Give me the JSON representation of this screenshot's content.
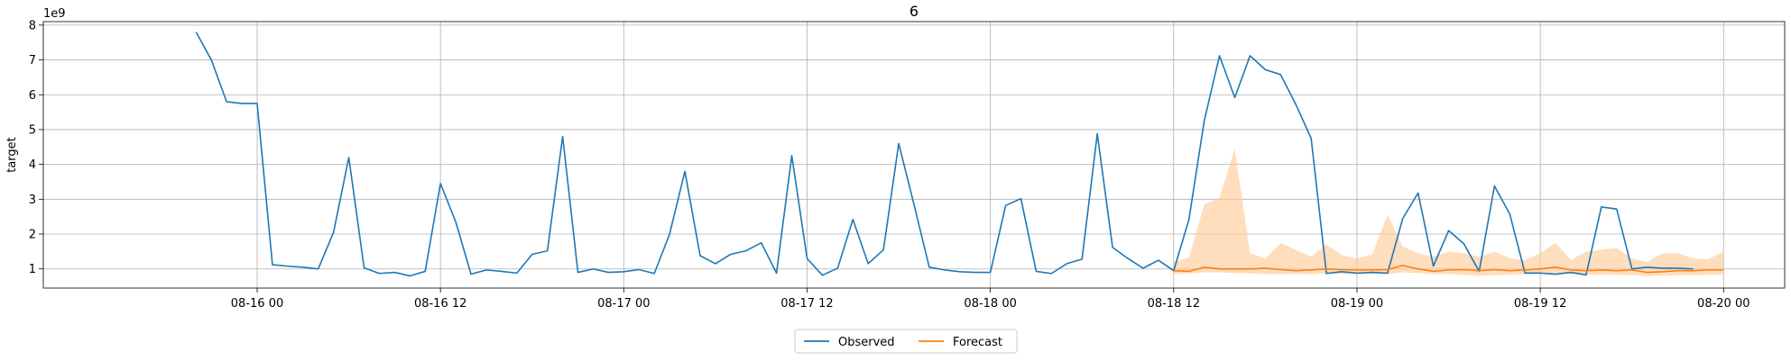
{
  "chart_data": {
    "type": "line",
    "title": "6",
    "xlabel": "",
    "ylabel": "target",
    "y_multiplier_label": "1e9",
    "y_scale": 1000000000,
    "xlim_hours": [
      -14,
      100
    ],
    "ylim": [
      0.45,
      8.1
    ],
    "grid": true,
    "legend_position": "bottom-center",
    "x_ticks": [
      {
        "h": 0,
        "label": "08-16 00"
      },
      {
        "h": 12,
        "label": "08-16 12"
      },
      {
        "h": 24,
        "label": "08-17 00"
      },
      {
        "h": 36,
        "label": "08-17 12"
      },
      {
        "h": 48,
        "label": "08-18 00"
      },
      {
        "h": 60,
        "label": "08-18 12"
      },
      {
        "h": 72,
        "label": "08-19 00"
      },
      {
        "h": 84,
        "label": "08-19 12"
      },
      {
        "h": 96,
        "label": "08-20 00"
      }
    ],
    "y_ticks": [
      1,
      2,
      3,
      4,
      5,
      6,
      7,
      8
    ],
    "series": [
      {
        "name": "Observed",
        "color": "#1f77b4",
        "x_start_hour": -4,
        "step_hours": 1,
        "values": [
          7.8,
          7.0,
          5.8,
          5.75,
          5.75,
          1.12,
          1.08,
          1.05,
          1.0,
          2.05,
          4.2,
          1.03,
          0.87,
          0.9,
          0.8,
          0.93,
          3.45,
          2.35,
          0.85,
          0.97,
          0.93,
          0.88,
          1.42,
          1.52,
          4.8,
          0.9,
          1.0,
          0.9,
          0.92,
          0.98,
          0.87,
          2.0,
          3.8,
          1.38,
          1.15,
          1.42,
          1.52,
          1.75,
          0.88,
          4.25,
          1.3,
          0.82,
          1.02,
          2.42,
          1.15,
          1.55,
          4.6,
          2.85,
          1.05,
          0.97,
          0.92,
          0.9,
          0.9,
          2.82,
          3.02,
          0.93,
          0.87,
          1.15,
          1.28,
          4.88,
          1.62,
          1.3,
          1.02,
          1.25,
          0.95,
          2.42,
          5.25,
          7.12,
          5.92,
          7.12,
          6.72,
          6.58,
          5.72,
          4.75,
          0.87,
          0.92,
          0.88,
          0.9,
          0.88,
          2.45,
          3.18,
          1.08,
          2.1,
          1.72,
          0.93,
          3.38,
          2.58,
          0.88,
          0.88,
          0.85,
          0.9,
          0.83,
          2.78,
          2.72,
          1.0,
          1.05,
          1.02,
          1.02,
          1.0
        ]
      },
      {
        "name": "Forecast",
        "color": "#ff7f0e",
        "x_start_hour": 60,
        "step_hours": 1,
        "values": [
          0.95,
          0.93,
          1.05,
          1.0,
          1.0,
          1.0,
          1.02,
          0.98,
          0.95,
          0.97,
          1.0,
          0.98,
          0.97,
          0.97,
          0.98,
          1.1,
          1.0,
          0.93,
          0.97,
          0.98,
          0.95,
          0.98,
          0.95,
          0.97,
          1.0,
          1.05,
          0.97,
          0.95,
          0.97,
          0.95,
          0.97,
          0.9,
          0.92,
          0.95,
          0.95,
          0.97,
          0.97
        ],
        "interval_lower": [
          0.85,
          0.87,
          0.9,
          0.9,
          0.88,
          0.87,
          0.85,
          0.85,
          0.85,
          0.85,
          0.87,
          0.85,
          0.85,
          0.85,
          0.85,
          0.9,
          0.88,
          0.85,
          0.85,
          0.83,
          0.8,
          0.82,
          0.83,
          0.85,
          0.87,
          0.88,
          0.85,
          0.83,
          0.83,
          0.83,
          0.82,
          0.8,
          0.8,
          0.82,
          0.82,
          0.83,
          0.83
        ],
        "interval_upper": [
          1.2,
          1.32,
          2.85,
          3.05,
          4.45,
          1.45,
          1.3,
          1.75,
          1.55,
          1.35,
          1.7,
          1.4,
          1.3,
          1.42,
          2.55,
          1.65,
          1.45,
          1.35,
          1.5,
          1.45,
          1.35,
          1.5,
          1.3,
          1.25,
          1.45,
          1.75,
          1.25,
          1.5,
          1.55,
          1.6,
          1.3,
          1.2,
          1.45,
          1.45,
          1.3,
          1.28,
          1.5
        ],
        "interval_color": "#ffcc99"
      }
    ]
  }
}
